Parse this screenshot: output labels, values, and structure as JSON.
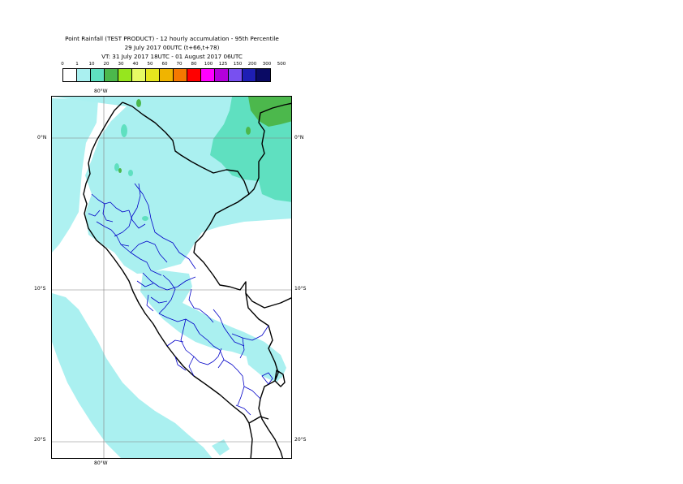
{
  "titles": {
    "line1": "Point Rainfall (TEST PRODUCT) - 12 hourly accumulation - 95th Percentile",
    "line2": "29 July 2017 00UTC (t+66,t+78)",
    "line3": "VT: 31 July 2017 18UTC - 01 August 2017 06UTC"
  },
  "legend": {
    "thresholds": [
      "0",
      "1",
      "10",
      "20",
      "30",
      "40",
      "50",
      "60",
      "70",
      "80",
      "100",
      "125",
      "150",
      "200",
      "300",
      "500"
    ],
    "colors": [
      "#ffffff",
      "#aaf0f0",
      "#5fe0c0",
      "#4cb84c",
      "#96e61e",
      "#e6fa64",
      "#e6e61e",
      "#f0b400",
      "#f57800",
      "#ff0000",
      "#ff00ff",
      "#b400dc",
      "#7850f0",
      "#1e1eb4",
      "#0a0a64"
    ]
  },
  "axes": {
    "lon_top": "80°W",
    "lon_bottom": "80°W",
    "lat_0_left": "0°N",
    "lat_0_right": "0°N",
    "lat_10_left": "10°S",
    "lat_10_right": "10°S",
    "lat_20_left": "20°S",
    "lat_20_right": "20°S"
  },
  "map": {
    "region": "Peru",
    "colors": {
      "rain_light": "#aaf0f0",
      "rain_mod": "#5fe0c0",
      "rain_heavy": "#4cb84c",
      "border_country": "#000000",
      "border_admin": "#0000c8",
      "grid": "#808080"
    }
  }
}
